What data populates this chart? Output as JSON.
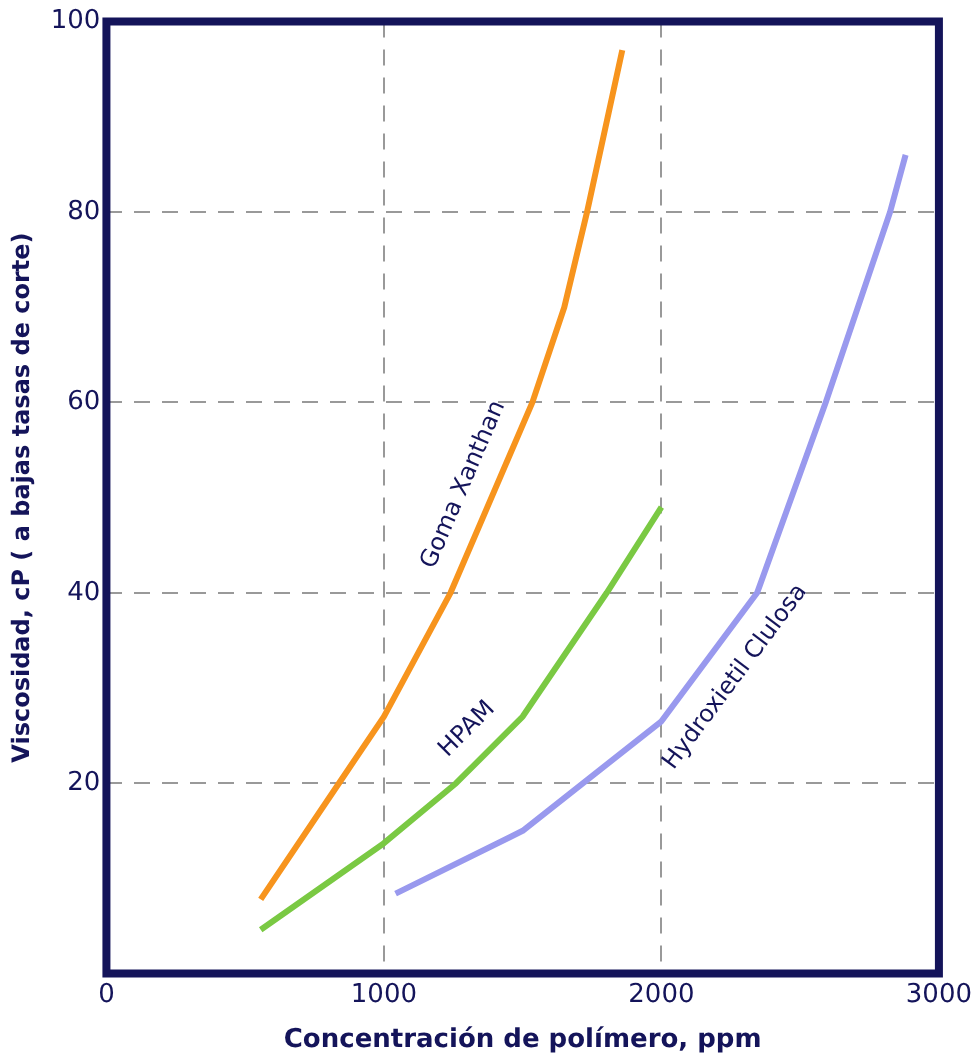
{
  "chart_data": {
    "type": "line",
    "xlabel": "Concentración de polímero, ppm",
    "ylabel": "Viscosidad, cP ( a bajas tasas de corte)",
    "xlim": [
      0,
      3000
    ],
    "xticks": [
      0,
      1000,
      2000,
      3000
    ],
    "ylim": [
      0,
      100
    ],
    "yticks": [
      20,
      40,
      60,
      80,
      100
    ],
    "grid": true,
    "legend": false,
    "marker": "none",
    "line_style": "solid",
    "series": [
      {
        "name": "Goma Xanthan",
        "color": "#f7941d",
        "x": [
          556,
          838,
          1000,
          1240,
          1535,
          1650,
          1732,
          1859
        ],
        "values": [
          7.8,
          20,
          27,
          40,
          60,
          70,
          80,
          97
        ]
      },
      {
        "name": "HPAM",
        "color": "#7ac943",
        "x": [
          556,
          1000,
          1260,
          1500,
          1803,
          2000
        ],
        "values": [
          4.6,
          13.7,
          20,
          27,
          40,
          49
        ]
      },
      {
        "name": "Hydroxietil Clulosa",
        "color": "#9999ee",
        "x": [
          1042,
          1500,
          2000,
          2345,
          2592,
          2824,
          2880
        ],
        "values": [
          8.4,
          15,
          26.5,
          40,
          60,
          80,
          86
        ]
      }
    ]
  }
}
